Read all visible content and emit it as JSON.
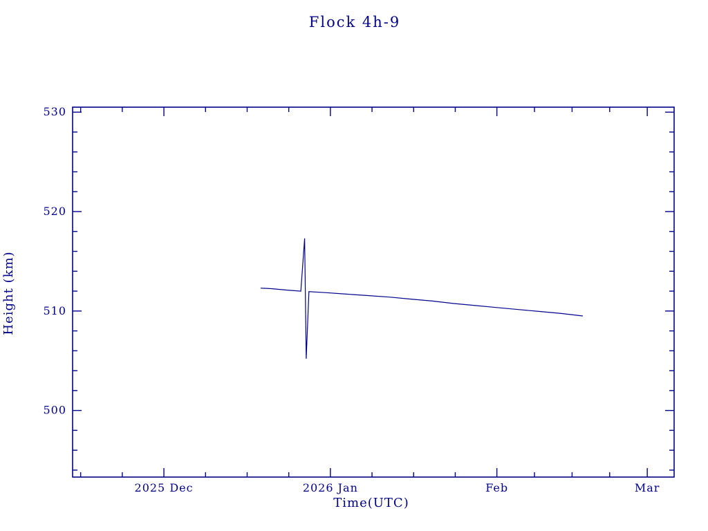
{
  "chart_data": {
    "type": "line",
    "title": "Flock 4h-9",
    "xlabel": "Time(UTC)",
    "ylabel": "Height (km)",
    "line_color": "#00008b",
    "background": "#ffffff",
    "legend": "none",
    "grid": false,
    "x_unit": "days since 2025-12-01",
    "x_range": [
      -17,
      95
    ],
    "y_range": [
      493.3,
      530.5
    ],
    "x_ticks": [
      {
        "value": 0,
        "label": "2025 Dec"
      },
      {
        "value": 31,
        "label": "2026 Jan"
      },
      {
        "value": 62,
        "label": "Feb"
      },
      {
        "value": 90,
        "label": "Mar"
      }
    ],
    "x_minor_ticks": [
      -15.5,
      -7.75,
      7.75,
      15.5,
      23.25,
      38.75,
      46.5,
      54.25,
      69,
      76,
      83
    ],
    "y_ticks": [
      {
        "value": 500,
        "label": "500"
      },
      {
        "value": 510,
        "label": "510"
      },
      {
        "value": 520,
        "label": "520"
      },
      {
        "value": 530,
        "label": "530"
      }
    ],
    "y_minor_ticks": [
      494,
      496,
      498,
      502,
      504,
      506,
      508,
      512,
      514,
      516,
      518,
      522,
      524,
      526,
      528
    ],
    "series": [
      {
        "name": "height-km",
        "points": [
          [
            18.0,
            512.3
          ],
          [
            20.0,
            512.25
          ],
          [
            23.0,
            512.1
          ],
          [
            25.5,
            512.0
          ],
          [
            26.2,
            517.3
          ],
          [
            26.5,
            505.2
          ],
          [
            27.0,
            511.95
          ],
          [
            30.0,
            511.85
          ],
          [
            34.0,
            511.7
          ],
          [
            38.0,
            511.55
          ],
          [
            42.0,
            511.4
          ],
          [
            46.0,
            511.2
          ],
          [
            50.0,
            511.0
          ],
          [
            54.0,
            510.75
          ],
          [
            58.0,
            510.55
          ],
          [
            62.0,
            510.35
          ],
          [
            66.0,
            510.15
          ],
          [
            70.0,
            509.95
          ],
          [
            74.0,
            509.75
          ],
          [
            78.0,
            509.5
          ]
        ]
      }
    ]
  }
}
